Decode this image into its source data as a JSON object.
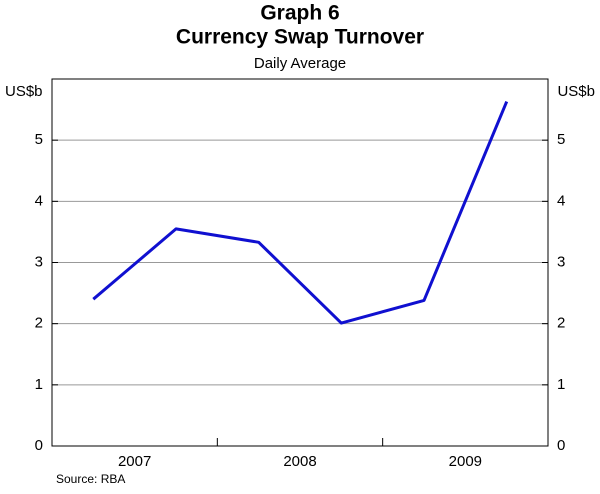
{
  "chart_data": {
    "type": "line",
    "title": "Graph 6",
    "subtitle": "Currency Swap Turnover",
    "note": "Daily Average",
    "y_label": "US$b",
    "y2_label": "US$b",
    "source": "Source: RBA",
    "categories": [
      "2007",
      "2008",
      "2009"
    ],
    "series": [
      {
        "color": "#1010d0",
        "values": [
          [
            2.4,
            3.55
          ],
          [
            3.33,
            2.01
          ],
          [
            2.38,
            5.63
          ]
        ]
      }
    ],
    "ylim": [
      0,
      6
    ],
    "yticks": [
      0,
      1,
      2,
      3,
      4,
      5
    ],
    "y2lim": [
      0,
      6
    ],
    "y2ticks": [
      0,
      1,
      2,
      3,
      4,
      5
    ],
    "grid": true
  }
}
